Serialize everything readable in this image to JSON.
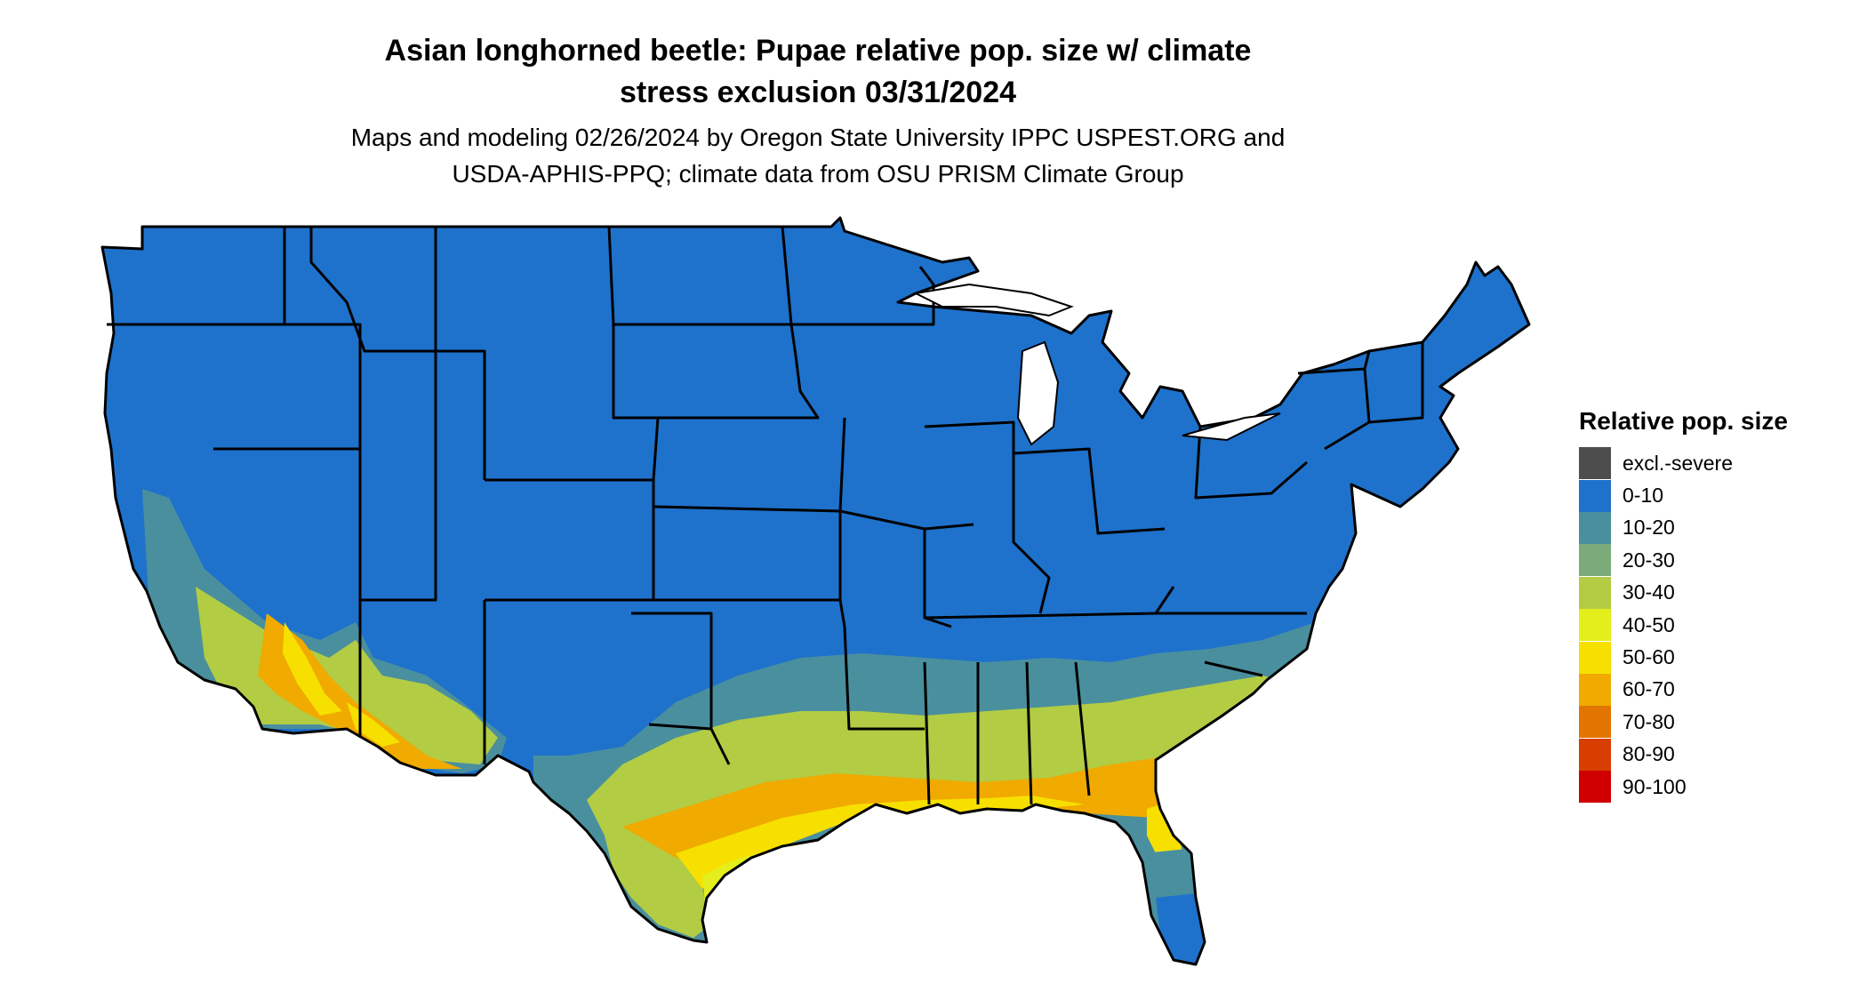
{
  "title_line1": "Asian longhorned beetle: Pupae relative pop. size w/ climate",
  "title_line2": "stress exclusion 03/31/2024",
  "subtitle_line1": "Maps and modeling 02/26/2024 by Oregon State University IPPC USPEST.ORG and",
  "subtitle_line2": "USDA-APHIS-PPQ; climate data from OSU PRISM Climate Group",
  "legend": {
    "title": "Relative pop. size",
    "items": [
      {
        "label": "excl.-severe",
        "color": "#4d4d4d"
      },
      {
        "label": "0-10",
        "color": "#1e72cc"
      },
      {
        "label": "10-20",
        "color": "#4a8f9e"
      },
      {
        "label": "20-30",
        "color": "#7aab78"
      },
      {
        "label": "30-40",
        "color": "#b2cc44"
      },
      {
        "label": "40-50",
        "color": "#e4ee1c"
      },
      {
        "label": "50-60",
        "color": "#f7e000"
      },
      {
        "label": "60-70",
        "color": "#f0aa00"
      },
      {
        "label": "70-80",
        "color": "#e27400"
      },
      {
        "label": "80-90",
        "color": "#d83e00"
      },
      {
        "label": "90-100",
        "color": "#d10000"
      }
    ]
  },
  "map": {
    "region": "Contiguous United States",
    "border_color": "#000000",
    "background_color": "#ffffff"
  }
}
